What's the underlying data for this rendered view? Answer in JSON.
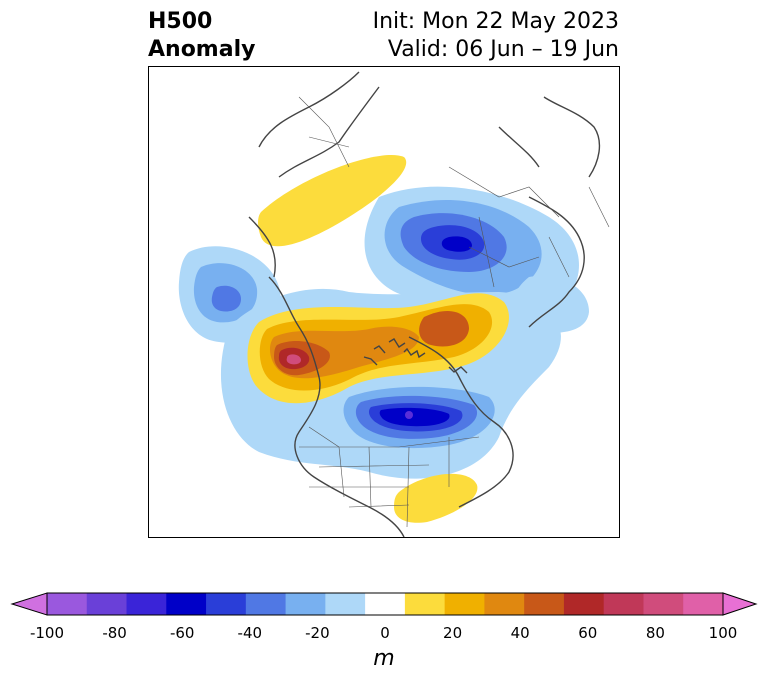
{
  "title": {
    "left_line1": "H500",
    "left_line2": "Anomaly",
    "right_line1": "Init: Mon 22 May 2023",
    "right_line2": "Valid: 06 Jun – 19 Jun"
  },
  "colorbar": {
    "unit": "m",
    "ticks": [
      "-100",
      "-80",
      "-60",
      "-40",
      "-20",
      "0",
      "20",
      "40",
      "60",
      "80",
      "100"
    ],
    "colors": [
      "#d070e0",
      "#9a58de",
      "#6a40d8",
      "#3a24d8",
      "#0000c8",
      "#2a3ed8",
      "#5078e4",
      "#78b0f0",
      "#aed8f8",
      "#ffffff",
      "#fcdc3c",
      "#f0b000",
      "#e08810",
      "#c85818",
      "#b02828",
      "#c03858",
      "#d04c7c",
      "#e060a8",
      "#e870d4"
    ]
  },
  "map": {
    "features": [
      {
        "name": "yellow-anomaly-greenland-north",
        "value": 15
      },
      {
        "name": "blue-anomaly-siberia",
        "value": -45
      },
      {
        "name": "blue-anomaly-pacific",
        "value": -35
      },
      {
        "name": "red-anomaly-gulf-of-alaska",
        "value": 75
      },
      {
        "name": "orange-anomaly-arctic",
        "value": 45
      },
      {
        "name": "blue-anomaly-hudson-bay",
        "value": -65
      },
      {
        "name": "yellow-anomaly-atlantic",
        "value": 15
      }
    ]
  }
}
